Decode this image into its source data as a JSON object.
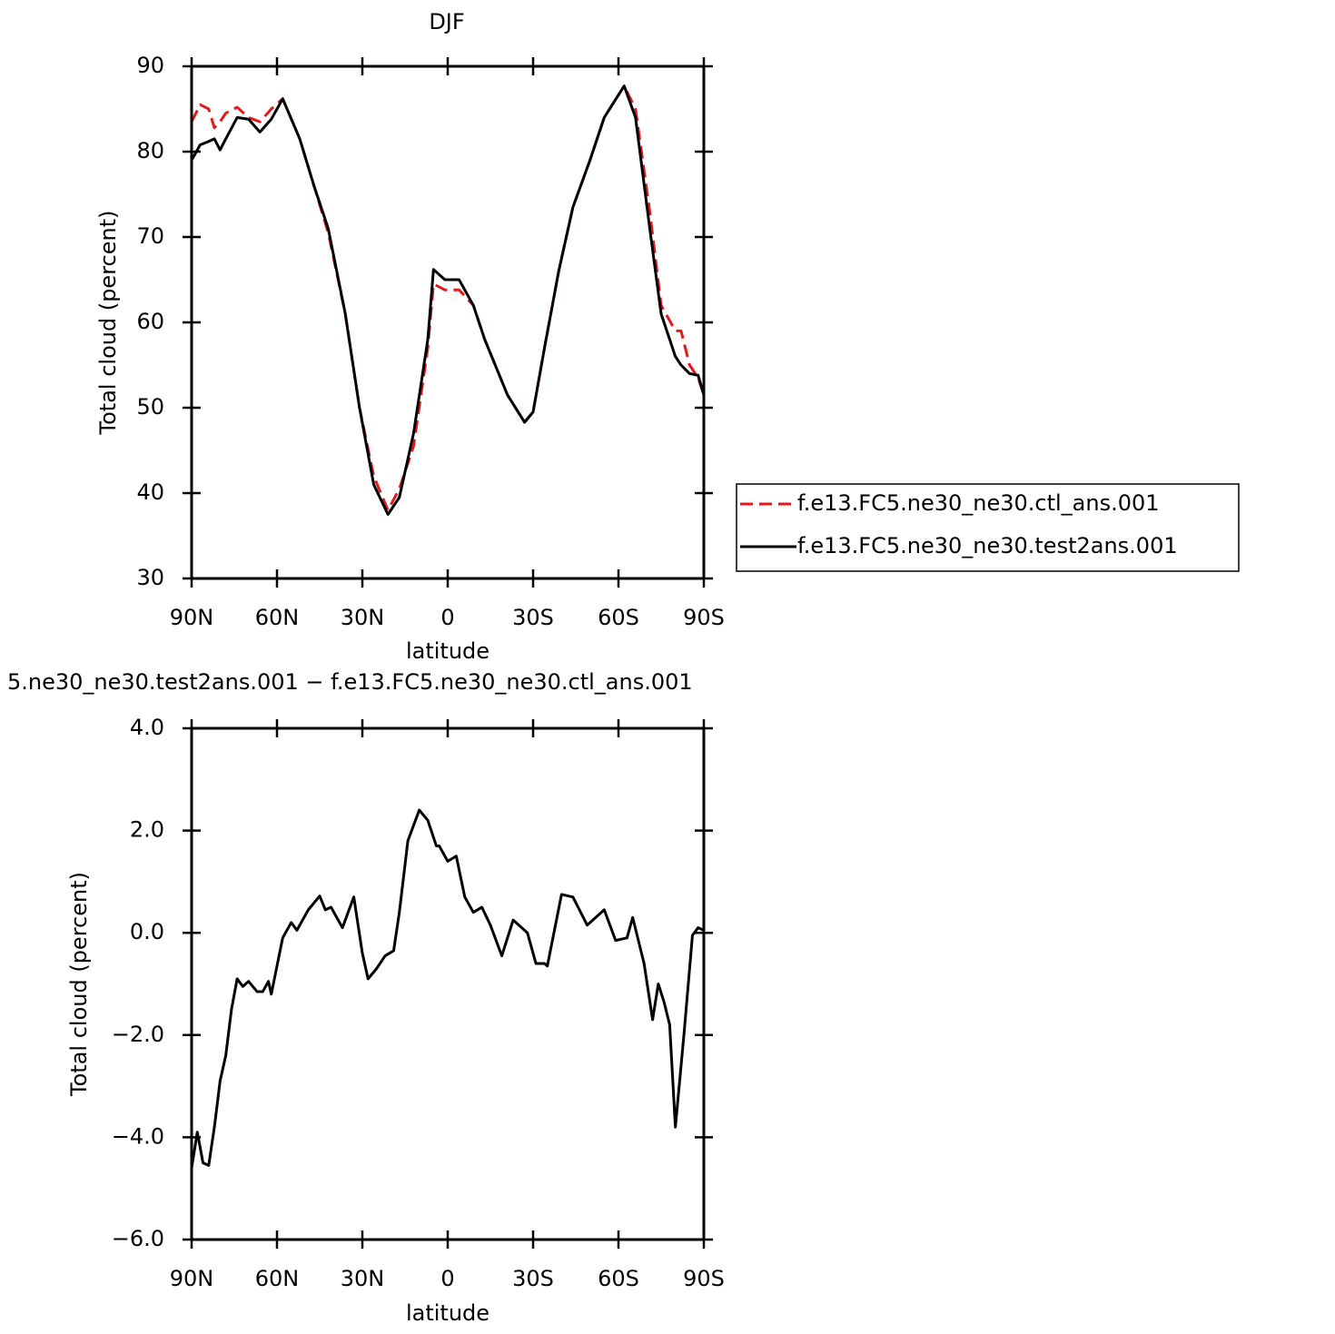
{
  "chart_data": [
    {
      "type": "line",
      "title": "DJF",
      "ylabel": "Total cloud (percent)",
      "xlabel": "latitude",
      "x": [
        90,
        87,
        84,
        82,
        80,
        78,
        74,
        70,
        66,
        62,
        58,
        52,
        47,
        42,
        36,
        31,
        26,
        21,
        17,
        12,
        7,
        5,
        1,
        -4,
        -9,
        -13,
        -21,
        -27,
        -30,
        -34,
        -39,
        -44,
        -50,
        -55,
        -62,
        -66,
        -71,
        -75,
        -80,
        -82,
        -85,
        -88,
        -90
      ],
      "series": [
        {
          "name": "f.e13.FC5.ne30_ne30.ctl_ans.001",
          "color": "#e31a1c",
          "line_style": "dashed",
          "values": [
            83.5,
            85.5,
            85,
            82.8,
            83.5,
            84.5,
            85.2,
            84,
            83.5,
            85,
            86.2,
            81.5,
            76,
            70.5,
            61,
            50,
            42,
            38,
            40.5,
            45.5,
            57,
            64.5,
            63.8,
            63.8,
            62,
            58,
            51.5,
            48.3,
            49.5,
            57,
            66,
            73.5,
            79,
            84,
            87.7,
            85,
            73,
            62,
            59,
            59,
            55,
            53.5,
            51.5
          ]
        },
        {
          "name": "f.e13.FC5.ne30_ne30.test2ans.001",
          "color": "#000000",
          "line_style": "solid",
          "values": [
            79,
            80.8,
            81.2,
            81.5,
            80.2,
            81.5,
            84,
            83.8,
            82.3,
            83.8,
            86.2,
            81.5,
            76,
            71,
            61,
            50,
            41,
            37.5,
            39.5,
            47,
            58,
            66.2,
            65,
            65,
            62,
            58,
            51.5,
            48.3,
            49.5,
            57,
            66,
            73.5,
            79,
            84,
            87.7,
            84,
            71,
            61,
            56,
            55,
            54,
            53.8,
            51.5
          ]
        }
      ],
      "xlim": [
        90,
        -90
      ],
      "xticks": [
        {
          "value": 90,
          "label": "90N"
        },
        {
          "value": 60,
          "label": "60N"
        },
        {
          "value": 30,
          "label": "30N"
        },
        0,
        {
          "value": -30,
          "label": "30S"
        },
        {
          "value": -60,
          "label": "60S"
        },
        {
          "value": -90,
          "label": "90S"
        }
      ],
      "ylim": [
        30,
        90
      ],
      "yticks": [
        30,
        40,
        50,
        60,
        70,
        80,
        90
      ],
      "legend": "right"
    },
    {
      "type": "line",
      "title": "5.ne30_ne30.test2ans.001 − f.e13.FC5.ne30_ne30.ctl_ans.001",
      "ylabel": "Total cloud (percent)",
      "xlabel": "latitude",
      "x": [
        90,
        88,
        86,
        84,
        82,
        80,
        78,
        76,
        74,
        72,
        70,
        67,
        65,
        63,
        62,
        58,
        55,
        53,
        49,
        45,
        43,
        41,
        37,
        33,
        30,
        28,
        25,
        22,
        19,
        17,
        14,
        10,
        7,
        4,
        3,
        0,
        -3,
        -6,
        -9,
        -12,
        -15,
        -19,
        -23,
        -28,
        -31,
        -34,
        -35,
        -40,
        -44,
        -49,
        -55,
        -59,
        -63,
        -65,
        -69,
        -72,
        -74,
        -76,
        -78,
        -80,
        -83,
        -86,
        -88,
        -90
      ],
      "values": [
        -4.6,
        -3.9,
        -4.5,
        -4.55,
        -3.8,
        -2.9,
        -2.4,
        -1.5,
        -0.9,
        -1.05,
        -0.95,
        -1.15,
        -1.15,
        -0.95,
        -1.2,
        -0.1,
        0.2,
        0.05,
        0.45,
        0.72,
        0.45,
        0.5,
        0.1,
        0.7,
        -0.4,
        -0.9,
        -0.7,
        -0.45,
        -0.35,
        0.4,
        1.8,
        2.4,
        2.2,
        1.7,
        1.7,
        1.4,
        1.5,
        0.7,
        0.4,
        0.5,
        0.15,
        -0.45,
        0.25,
        0,
        -0.6,
        -0.6,
        -0.65,
        0.75,
        0.7,
        0.15,
        0.45,
        -0.15,
        -0.1,
        0.3,
        -0.6,
        -1.7,
        -1,
        -1.35,
        -1.8,
        -3.8,
        -2,
        -0.05,
        0.1,
        0.05
      ],
      "color": "#000000",
      "line_style": "solid",
      "xlim": [
        90,
        -90
      ],
      "xticks": [
        {
          "value": 90,
          "label": "90N"
        },
        {
          "value": 60,
          "label": "60N"
        },
        {
          "value": 30,
          "label": "30N"
        },
        0,
        {
          "value": -30,
          "label": "30S"
        },
        {
          "value": -60,
          "label": "60S"
        },
        {
          "value": -90,
          "label": "90S"
        }
      ],
      "ylim": [
        -6,
        4
      ],
      "yticks": [
        {
          "value": -6,
          "label": "−6.0"
        },
        {
          "value": -4,
          "label": "−4.0"
        },
        {
          "value": -2,
          "label": "−2.0"
        },
        {
          "value": 0,
          "label": "0.0"
        },
        {
          "value": 2,
          "label": "2.0"
        },
        {
          "value": 4,
          "label": "4.0"
        }
      ]
    }
  ]
}
